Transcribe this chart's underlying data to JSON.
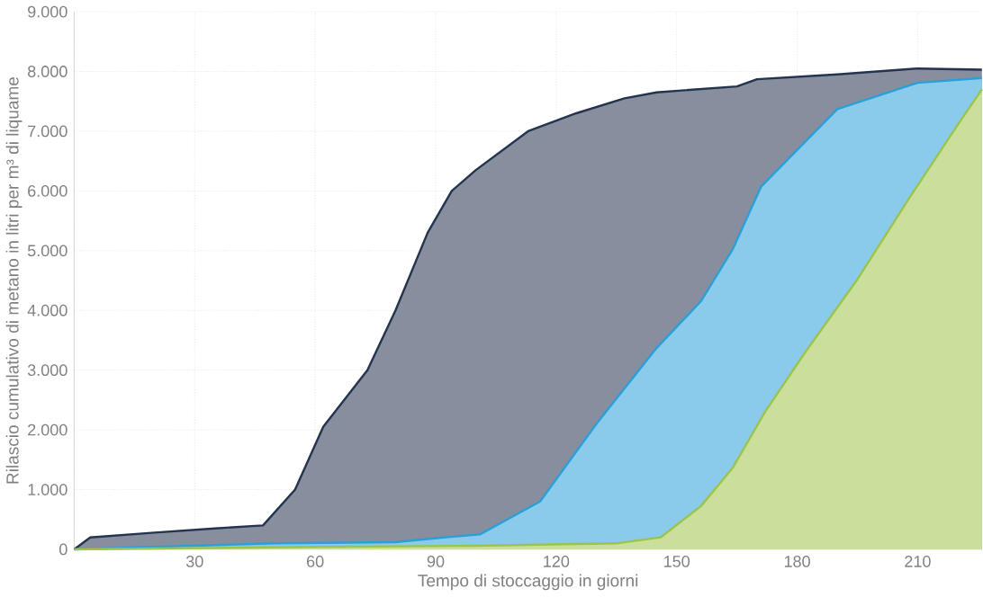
{
  "chart_data": {
    "type": "area",
    "xlabel": "Tempo di stoccaggio in giorni",
    "ylabel": "Rilascio cumulativo di metano in litri per m³ di liquame",
    "xlim": [
      0,
      226
    ],
    "ylim": [
      0,
      9000
    ],
    "xticks": [
      {
        "value": 0,
        "label": null
      },
      30,
      60,
      90,
      120,
      150,
      180,
      210
    ],
    "yticks": [
      0,
      {
        "value": 1000,
        "label": "1.000"
      },
      {
        "value": 2000,
        "label": "2.000"
      },
      {
        "value": 3000,
        "label": "3.000"
      },
      {
        "value": 4000,
        "label": "4.000"
      },
      {
        "value": 5000,
        "label": "5.000"
      },
      {
        "value": 6000,
        "label": "6.000"
      },
      {
        "value": 7000,
        "label": "7.000"
      },
      {
        "value": 8000,
        "label": "8.000"
      },
      {
        "value": 9000,
        "label": "9.000"
      }
    ],
    "grid": true,
    "line_style": "solid",
    "marker": "none",
    "series": [
      {
        "color": "#24344f",
        "x": [
          0,
          4,
          20,
          35,
          47,
          55,
          62,
          73,
          80,
          88,
          94,
          100,
          113,
          125,
          137,
          145,
          155,
          165,
          170,
          190,
          210,
          226
        ],
        "values": [
          0,
          200,
          280,
          350,
          400,
          1000,
          2050,
          3000,
          4000,
          5300,
          6000,
          6350,
          7000,
          7300,
          7550,
          7650,
          7700,
          7750,
          7870,
          7950,
          8050,
          8030
        ]
      },
      {
        "color": "#2a9fd8",
        "x": [
          0,
          50,
          80,
          92,
          101,
          116,
          130,
          145,
          156,
          164,
          171,
          190,
          210,
          226
        ],
        "values": [
          0,
          100,
          120,
          200,
          250,
          800,
          2100,
          3370,
          4150,
          5030,
          6070,
          7370,
          7810,
          7890
        ]
      },
      {
        "color": "#9cc44a",
        "x": [
          0,
          60,
          100,
          135,
          146,
          156,
          164,
          172,
          182,
          195,
          208,
          220,
          226
        ],
        "values": [
          0,
          40,
          60,
          100,
          200,
          720,
          1370,
          2300,
          3300,
          4520,
          5890,
          7110,
          7700
        ]
      }
    ]
  }
}
